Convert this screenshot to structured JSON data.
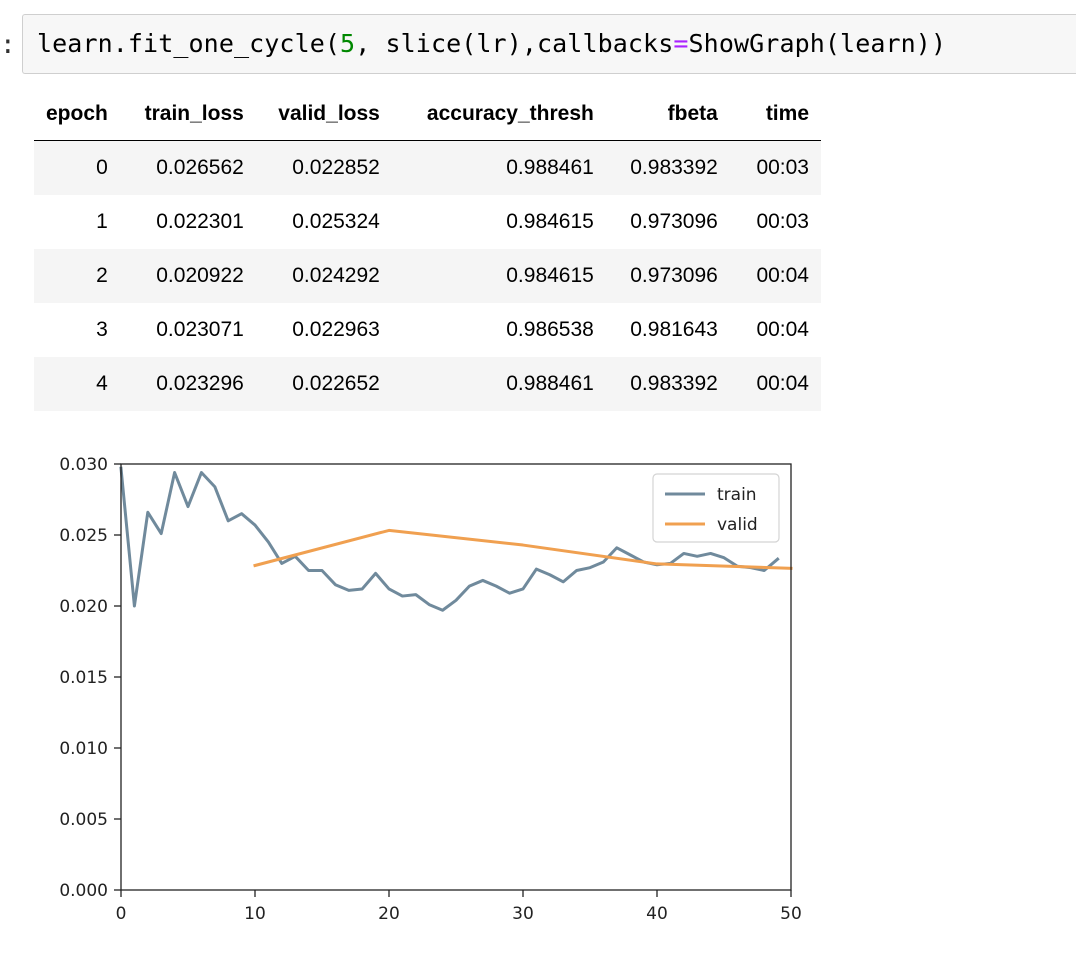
{
  "cell": {
    "prompt": ":",
    "code_parts": {
      "p1": "learn.fit_one_cycle(",
      "n1": "5",
      "p2": ", slice(lr),callbacks",
      "eq": "=",
      "p3": "ShowGraph(learn))"
    }
  },
  "table": {
    "headers": [
      "epoch",
      "train_loss",
      "valid_loss",
      "accuracy_thresh",
      "fbeta",
      "time"
    ],
    "rows": [
      [
        "0",
        "0.026562",
        "0.022852",
        "0.988461",
        "0.983392",
        "00:03"
      ],
      [
        "1",
        "0.022301",
        "0.025324",
        "0.984615",
        "0.973096",
        "00:03"
      ],
      [
        "2",
        "0.020922",
        "0.024292",
        "0.984615",
        "0.973096",
        "00:04"
      ],
      [
        "3",
        "0.023071",
        "0.022963",
        "0.986538",
        "0.981643",
        "00:04"
      ],
      [
        "4",
        "0.023296",
        "0.022652",
        "0.988461",
        "0.983392",
        "00:04"
      ]
    ]
  },
  "chart_data": {
    "type": "line",
    "title": "",
    "xlabel": "",
    "ylabel": "",
    "xlim": [
      0,
      50
    ],
    "ylim": [
      0,
      0.03
    ],
    "xticks": [
      "0",
      "10",
      "20",
      "30",
      "40",
      "50"
    ],
    "yticks": [
      "0.000",
      "0.005",
      "0.010",
      "0.015",
      "0.020",
      "0.025",
      "0.030"
    ],
    "grid": false,
    "legend_position": "top-right",
    "series": [
      {
        "name": "train",
        "color": "#708a9c",
        "x": [
          0,
          1,
          2,
          3,
          4,
          5,
          6,
          7,
          8,
          9,
          10,
          11,
          12,
          13,
          14,
          15,
          16,
          17,
          18,
          19,
          20,
          21,
          22,
          23,
          24,
          25,
          26,
          27,
          28,
          29,
          30,
          31,
          32,
          33,
          34,
          35,
          36,
          37,
          38,
          39,
          40,
          41,
          42,
          43,
          44,
          45,
          46,
          47,
          48,
          49
        ],
        "y": [
          0.0297,
          0.02,
          0.0266,
          0.0251,
          0.0294,
          0.027,
          0.0294,
          0.0284,
          0.026,
          0.0265,
          0.0257,
          0.0245,
          0.023,
          0.0235,
          0.0225,
          0.0225,
          0.0215,
          0.0211,
          0.0212,
          0.0223,
          0.0212,
          0.0207,
          0.0208,
          0.0201,
          0.0197,
          0.0204,
          0.0214,
          0.0218,
          0.0214,
          0.0209,
          0.0212,
          0.0226,
          0.0222,
          0.0217,
          0.0225,
          0.0227,
          0.0231,
          0.0241,
          0.0236,
          0.0231,
          0.0229,
          0.023,
          0.0237,
          0.0235,
          0.0237,
          0.0234,
          0.0228,
          0.0227,
          0.0225,
          0.0233
        ]
      },
      {
        "name": "valid",
        "color": "#f0a050",
        "x": [
          10,
          20,
          30,
          40,
          50
        ],
        "y": [
          0.022852,
          0.025324,
          0.024292,
          0.022963,
          0.022652
        ]
      }
    ]
  }
}
